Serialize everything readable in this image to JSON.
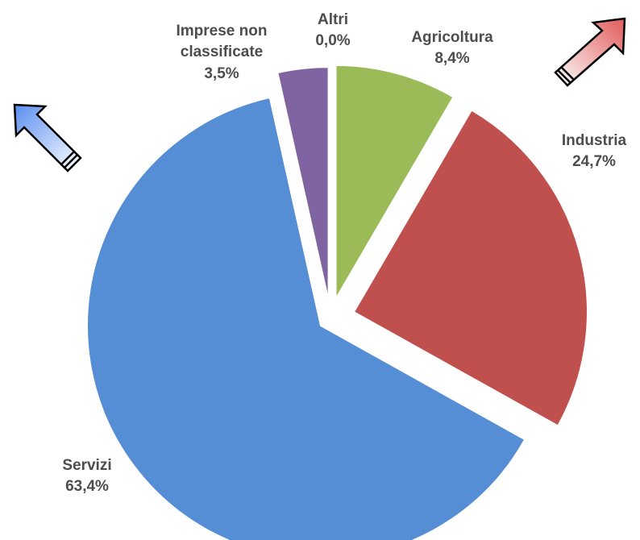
{
  "chart_data": {
    "type": "pie",
    "slices": [
      {
        "label": "Agricoltura",
        "value": 8.4,
        "value_label": "8,4%",
        "color": "#9bbb59"
      },
      {
        "label": "Industria",
        "value": 24.7,
        "value_label": "24,7%",
        "color": "#c0504d"
      },
      {
        "label": "Servizi",
        "value": 63.4,
        "value_label": "63,4%",
        "color": "#558ed5"
      },
      {
        "label": "Imprese non classificate",
        "value": 3.5,
        "value_label": "3,5%",
        "color": "#8064a2"
      },
      {
        "label": "Altri",
        "value": 0.0,
        "value_label": "0,0%",
        "color": "#4bacc6"
      }
    ],
    "exploded": true,
    "decorations": [
      {
        "icon": "arrow-up-left-icon",
        "color": "#6f9ce8"
      },
      {
        "icon": "arrow-up-right-icon",
        "color": "#e06666"
      }
    ]
  }
}
